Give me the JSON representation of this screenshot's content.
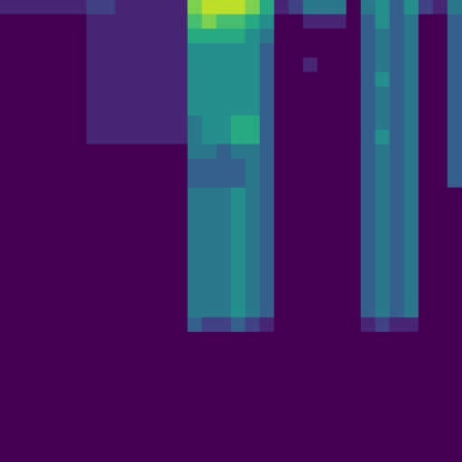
{
  "chart_data": {
    "type": "heatmap",
    "color": "viridis",
    "tick_labels": false,
    "zlim": [
      0,
      10
    ],
    "cells": [
      [
        1,
        1,
        1,
        1,
        1,
        1,
        2,
        2,
        1,
        1,
        1,
        1,
        1,
        8,
        9,
        9,
        9,
        8,
        6,
        1,
        2,
        4,
        4,
        4,
        0,
        4,
        5,
        3,
        5,
        2,
        1,
        4
      ],
      [
        0,
        0,
        0,
        0,
        0,
        0,
        1,
        1,
        1,
        1,
        1,
        1,
        1,
        7,
        8,
        7,
        7,
        6,
        5,
        0,
        0,
        1,
        1,
        1,
        0,
        3,
        5,
        3,
        4,
        0,
        0,
        3
      ],
      [
        0,
        0,
        0,
        0,
        0,
        0,
        1,
        1,
        1,
        1,
        1,
        1,
        1,
        6,
        6,
        6,
        6,
        5,
        4,
        0,
        0,
        0,
        0,
        0,
        0,
        3,
        4,
        3,
        4,
        0,
        0,
        3
      ],
      [
        0,
        0,
        0,
        0,
        0,
        0,
        1,
        1,
        1,
        1,
        1,
        1,
        1,
        5,
        5,
        5,
        5,
        5,
        3,
        0,
        0,
        0,
        0,
        0,
        0,
        3,
        4,
        3,
        4,
        0,
        0,
        3
      ],
      [
        0,
        0,
        0,
        0,
        0,
        0,
        1,
        1,
        1,
        1,
        1,
        1,
        1,
        5,
        5,
        5,
        5,
        5,
        3,
        0,
        0,
        1,
        0,
        0,
        0,
        3,
        4,
        3,
        4,
        0,
        0,
        3
      ],
      [
        0,
        0,
        0,
        0,
        0,
        0,
        1,
        1,
        1,
        1,
        1,
        1,
        1,
        5,
        5,
        5,
        5,
        5,
        3,
        0,
        0,
        0,
        0,
        0,
        0,
        3,
        5,
        3,
        4,
        0,
        0,
        3
      ],
      [
        0,
        0,
        0,
        0,
        0,
        0,
        1,
        1,
        1,
        1,
        1,
        1,
        1,
        5,
        5,
        5,
        5,
        5,
        3,
        0,
        0,
        0,
        0,
        0,
        0,
        3,
        4,
        3,
        4,
        0,
        0,
        3
      ],
      [
        0,
        0,
        0,
        0,
        0,
        0,
        1,
        1,
        1,
        1,
        1,
        1,
        1,
        5,
        5,
        5,
        5,
        5,
        3,
        0,
        0,
        0,
        0,
        0,
        0,
        3,
        4,
        3,
        4,
        0,
        0,
        3
      ],
      [
        0,
        0,
        0,
        0,
        0,
        0,
        1,
        1,
        1,
        1,
        1,
        1,
        1,
        4,
        5,
        5,
        6,
        6,
        3,
        0,
        0,
        0,
        0,
        0,
        0,
        3,
        4,
        3,
        4,
        0,
        0,
        3
      ],
      [
        0,
        0,
        0,
        0,
        0,
        0,
        1,
        1,
        1,
        1,
        1,
        1,
        1,
        4,
        5,
        5,
        6,
        6,
        3,
        0,
        0,
        0,
        0,
        0,
        0,
        3,
        5,
        3,
        4,
        0,
        0,
        3
      ],
      [
        0,
        0,
        0,
        0,
        0,
        0,
        0,
        0,
        0,
        0,
        0,
        0,
        0,
        4,
        4,
        3,
        4,
        4,
        3,
        0,
        0,
        0,
        0,
        0,
        0,
        3,
        4,
        3,
        4,
        0,
        0,
        3
      ],
      [
        0,
        0,
        0,
        0,
        0,
        0,
        0,
        0,
        0,
        0,
        0,
        0,
        0,
        3,
        3,
        3,
        3,
        4,
        3,
        0,
        0,
        0,
        0,
        0,
        0,
        3,
        4,
        3,
        4,
        0,
        0,
        3
      ],
      [
        0,
        0,
        0,
        0,
        0,
        0,
        0,
        0,
        0,
        0,
        0,
        0,
        0,
        3,
        3,
        3,
        3,
        4,
        3,
        0,
        0,
        0,
        0,
        0,
        0,
        3,
        4,
        3,
        4,
        0,
        0,
        3
      ],
      [
        0,
        0,
        0,
        0,
        0,
        0,
        0,
        0,
        0,
        0,
        0,
        0,
        0,
        4,
        4,
        4,
        5,
        4,
        3,
        0,
        0,
        0,
        0,
        0,
        0,
        3,
        4,
        3,
        4,
        0,
        0,
        0
      ],
      [
        0,
        0,
        0,
        0,
        0,
        0,
        0,
        0,
        0,
        0,
        0,
        0,
        0,
        4,
        4,
        4,
        5,
        4,
        3,
        0,
        0,
        0,
        0,
        0,
        0,
        3,
        4,
        3,
        4,
        0,
        0,
        0
      ],
      [
        0,
        0,
        0,
        0,
        0,
        0,
        0,
        0,
        0,
        0,
        0,
        0,
        0,
        4,
        4,
        4,
        5,
        4,
        3,
        0,
        0,
        0,
        0,
        0,
        0,
        3,
        4,
        3,
        4,
        0,
        0,
        0
      ],
      [
        0,
        0,
        0,
        0,
        0,
        0,
        0,
        0,
        0,
        0,
        0,
        0,
        0,
        4,
        4,
        4,
        5,
        4,
        3,
        0,
        0,
        0,
        0,
        0,
        0,
        3,
        4,
        3,
        4,
        0,
        0,
        0
      ],
      [
        0,
        0,
        0,
        0,
        0,
        0,
        0,
        0,
        0,
        0,
        0,
        0,
        0,
        4,
        4,
        4,
        5,
        4,
        3,
        0,
        0,
        0,
        0,
        0,
        0,
        3,
        4,
        3,
        4,
        0,
        0,
        0
      ],
      [
        0,
        0,
        0,
        0,
        0,
        0,
        0,
        0,
        0,
        0,
        0,
        0,
        0,
        4,
        4,
        4,
        5,
        4,
        3,
        0,
        0,
        0,
        0,
        0,
        0,
        3,
        4,
        3,
        4,
        0,
        0,
        0
      ],
      [
        0,
        0,
        0,
        0,
        0,
        0,
        0,
        0,
        0,
        0,
        0,
        0,
        0,
        4,
        4,
        4,
        5,
        4,
        3,
        0,
        0,
        0,
        0,
        0,
        0,
        3,
        4,
        3,
        4,
        0,
        0,
        0
      ],
      [
        0,
        0,
        0,
        0,
        0,
        0,
        0,
        0,
        0,
        0,
        0,
        0,
        0,
        4,
        4,
        4,
        5,
        4,
        3,
        0,
        0,
        0,
        0,
        0,
        0,
        3,
        4,
        3,
        4,
        0,
        0,
        0
      ],
      [
        0,
        0,
        0,
        0,
        0,
        0,
        0,
        0,
        0,
        0,
        0,
        0,
        0,
        4,
        4,
        4,
        5,
        4,
        3,
        0,
        0,
        0,
        0,
        0,
        0,
        3,
        4,
        3,
        4,
        0,
        0,
        0
      ],
      [
        0,
        0,
        0,
        0,
        0,
        0,
        0,
        0,
        0,
        0,
        0,
        0,
        0,
        3,
        2,
        2,
        3,
        2,
        1,
        0,
        0,
        0,
        0,
        0,
        0,
        1,
        2,
        1,
        1,
        0,
        0,
        0
      ],
      [
        0,
        0,
        0,
        0,
        0,
        0,
        0,
        0,
        0,
        0,
        0,
        0,
        0,
        0,
        0,
        0,
        0,
        0,
        0,
        0,
        0,
        0,
        0,
        0,
        0,
        0,
        0,
        0,
        0,
        0,
        0,
        0
      ],
      [
        0,
        0,
        0,
        0,
        0,
        0,
        0,
        0,
        0,
        0,
        0,
        0,
        0,
        0,
        0,
        0,
        0,
        0,
        0,
        0,
        0,
        0,
        0,
        0,
        0,
        0,
        0,
        0,
        0,
        0,
        0,
        0
      ],
      [
        0,
        0,
        0,
        0,
        0,
        0,
        0,
        0,
        0,
        0,
        0,
        0,
        0,
        0,
        0,
        0,
        0,
        0,
        0,
        0,
        0,
        0,
        0,
        0,
        0,
        0,
        0,
        0,
        0,
        0,
        0,
        0
      ],
      [
        0,
        0,
        0,
        0,
        0,
        0,
        0,
        0,
        0,
        0,
        0,
        0,
        0,
        0,
        0,
        0,
        0,
        0,
        0,
        0,
        0,
        0,
        0,
        0,
        0,
        0,
        0,
        0,
        0,
        0,
        0,
        0
      ],
      [
        0,
        0,
        0,
        0,
        0,
        0,
        0,
        0,
        0,
        0,
        0,
        0,
        0,
        0,
        0,
        0,
        0,
        0,
        0,
        0,
        0,
        0,
        0,
        0,
        0,
        0,
        0,
        0,
        0,
        0,
        0,
        0
      ],
      [
        0,
        0,
        0,
        0,
        0,
        0,
        0,
        0,
        0,
        0,
        0,
        0,
        0,
        0,
        0,
        0,
        0,
        0,
        0,
        0,
        0,
        0,
        0,
        0,
        0,
        0,
        0,
        0,
        0,
        0,
        0,
        0
      ],
      [
        0,
        0,
        0,
        0,
        0,
        0,
        0,
        0,
        0,
        0,
        0,
        0,
        0,
        0,
        0,
        0,
        0,
        0,
        0,
        0,
        0,
        0,
        0,
        0,
        0,
        0,
        0,
        0,
        0,
        0,
        0,
        0
      ],
      [
        0,
        0,
        0,
        0,
        0,
        0,
        0,
        0,
        0,
        0,
        0,
        0,
        0,
        0,
        0,
        0,
        0,
        0,
        0,
        0,
        0,
        0,
        0,
        0,
        0,
        0,
        0,
        0,
        0,
        0,
        0,
        0
      ],
      [
        0,
        0,
        0,
        0,
        0,
        0,
        0,
        0,
        0,
        0,
        0,
        0,
        0,
        0,
        0,
        0,
        0,
        0,
        0,
        0,
        0,
        0,
        0,
        0,
        0,
        0,
        0,
        0,
        0,
        0,
        0,
        0
      ]
    ]
  }
}
